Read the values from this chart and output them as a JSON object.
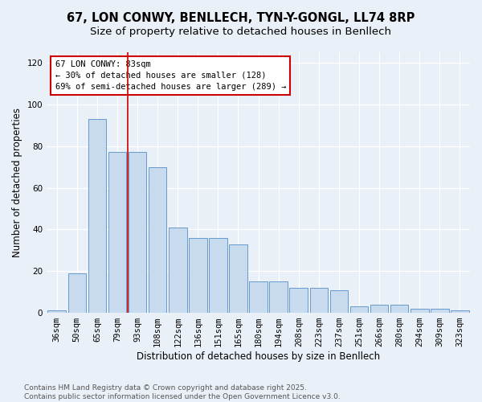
{
  "title_line1": "67, LON CONWY, BENLLECH, TYN-Y-GONGL, LL74 8RP",
  "title_line2": "Size of property relative to detached houses in Benllech",
  "xlabel": "Distribution of detached houses by size in Benllech",
  "ylabel": "Number of detached properties",
  "categories": [
    "36sqm",
    "50sqm",
    "65sqm",
    "79sqm",
    "93sqm",
    "108sqm",
    "122sqm",
    "136sqm",
    "151sqm",
    "165sqm",
    "180sqm",
    "194sqm",
    "208sqm",
    "223sqm",
    "237sqm",
    "251sqm",
    "266sqm",
    "280sqm",
    "294sqm",
    "309sqm",
    "323sqm"
  ],
  "values": [
    1,
    19,
    93,
    77,
    77,
    70,
    41,
    36,
    36,
    33,
    15,
    15,
    12,
    12,
    11,
    3,
    4,
    4,
    2,
    2,
    1
  ],
  "bar_color": "#c8daed",
  "bar_edge_color": "#6699cc",
  "marker_line_color": "#cc0000",
  "marker_line_index": 3.5,
  "annotation_text": "67 LON CONWY: 83sqm\n← 30% of detached houses are smaller (128)\n69% of semi-detached houses are larger (289) →",
  "annotation_box_color": "#ffffff",
  "annotation_box_edge_color": "#cc0000",
  "ylim": [
    0,
    125
  ],
  "yticks": [
    0,
    20,
    40,
    60,
    80,
    100,
    120
  ],
  "background_color": "#eaf0f8",
  "grid_color": "#ffffff",
  "footer_text": "Contains HM Land Registry data © Crown copyright and database right 2025.\nContains public sector information licensed under the Open Government Licence v3.0.",
  "title_fontsize": 10.5,
  "subtitle_fontsize": 9.5,
  "axis_label_fontsize": 8.5,
  "tick_fontsize": 7.5,
  "annotation_fontsize": 7.5,
  "footer_fontsize": 6.5
}
